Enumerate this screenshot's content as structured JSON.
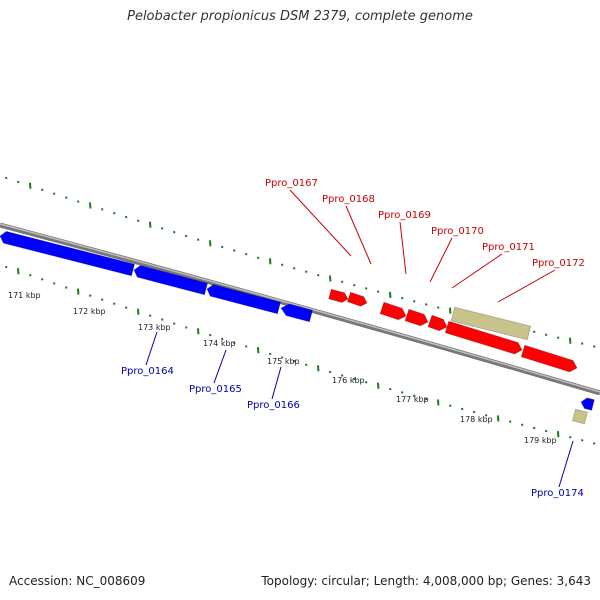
{
  "title": "Pelobacter propionicus DSM 2379, complete genome",
  "footer": {
    "accession": "Accession: NC_008609",
    "stats": "Topology: circular; Length: 4,008,000 bp; Genes: 3,643"
  },
  "colors": {
    "forward_gene": "#ff0000",
    "reverse_gene": "#0000ff",
    "rna_gene": "#c8c38a",
    "backbone": "#888888",
    "tick": "#1e7a1e",
    "forward_label": "#cc0000",
    "reverse_label": "#0000aa"
  },
  "scale": {
    "unit": "kbp",
    "ticks": [
      171,
      172,
      173,
      174,
      175,
      176,
      177,
      178,
      179
    ]
  },
  "genes_forward": [
    {
      "label": "Ppro_0167"
    },
    {
      "label": "Ppro_0168"
    },
    {
      "label": "Ppro_0169"
    },
    {
      "label": "Ppro_0170"
    },
    {
      "label": "Ppro_0171"
    },
    {
      "label": "Ppro_0172"
    }
  ],
  "genes_reverse": [
    {
      "label": "Ppro_0164"
    },
    {
      "label": "Ppro_0165"
    },
    {
      "label": "Ppro_0166"
    },
    {
      "label": "Ppro_0174"
    }
  ]
}
